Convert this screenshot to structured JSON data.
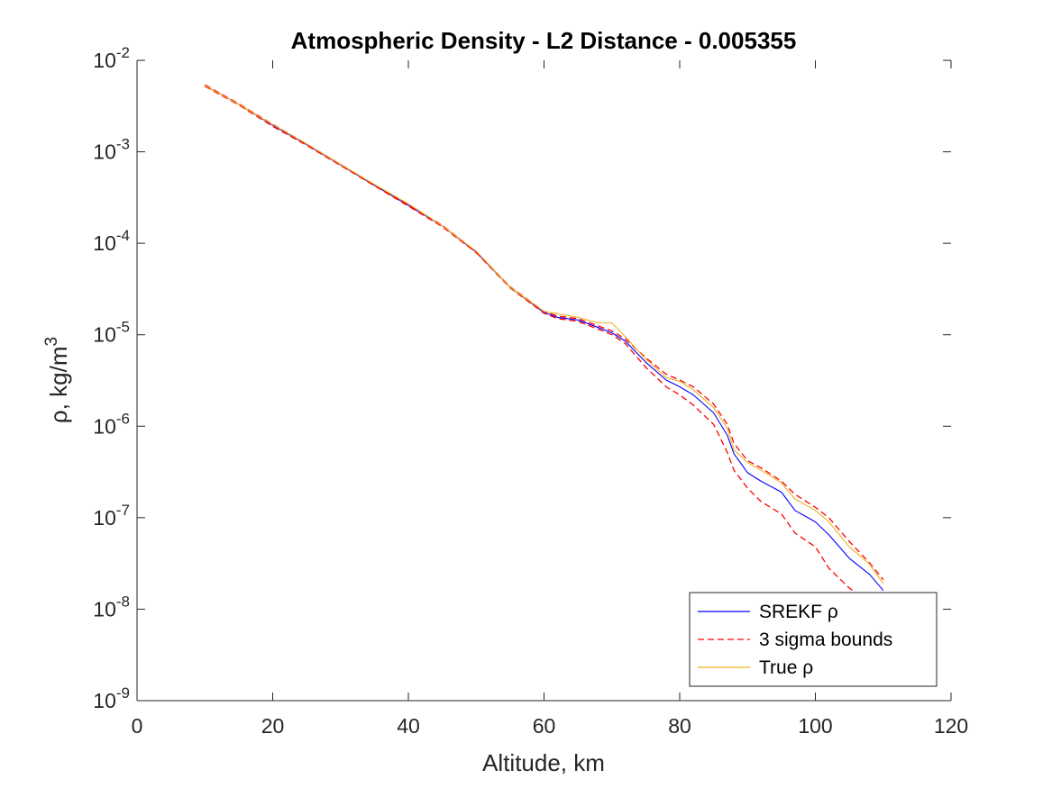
{
  "chart_data": {
    "type": "line",
    "title": "Atmospheric Density - L2 Distance - 0.005355",
    "xlabel": "Altitude, km",
    "ylabel": "ρ, kg/m",
    "ylabel_sup": "3",
    "xlim": [
      0,
      120
    ],
    "ylim": [
      1e-09,
      0.01
    ],
    "yscale": "log",
    "grid": false,
    "legend_position": "bottom-right",
    "x_ticks": [
      0,
      20,
      40,
      60,
      80,
      100,
      120
    ],
    "x_tick_labels": [
      "0",
      "20",
      "40",
      "60",
      "80",
      "100",
      "120"
    ],
    "y_ticks": [
      1e-09,
      1e-08,
      1e-07,
      1e-06,
      1e-05,
      0.0001,
      0.001,
      0.01
    ],
    "y_tick_labels": [
      {
        "base": "10",
        "exp": "-9"
      },
      {
        "base": "10",
        "exp": "-8"
      },
      {
        "base": "10",
        "exp": "-7"
      },
      {
        "base": "10",
        "exp": "-6"
      },
      {
        "base": "10",
        "exp": "-5"
      },
      {
        "base": "10",
        "exp": "-4"
      },
      {
        "base": "10",
        "exp": "-3"
      },
      {
        "base": "10",
        "exp": "-2"
      }
    ],
    "series": [
      {
        "name": "SREKF ρ",
        "color": "#0000ff",
        "style": "solid",
        "x": [
          10,
          15,
          20,
          25,
          30,
          35,
          40,
          45,
          50,
          55,
          60,
          62,
          65,
          68,
          70,
          72,
          75,
          78,
          80,
          82,
          85,
          87,
          88,
          90,
          92,
          95,
          97,
          100,
          102,
          105,
          108,
          110
        ],
        "y": [
          0.0053,
          0.0033,
          0.00195,
          0.0012,
          0.00072,
          0.00043,
          0.00026,
          0.000155,
          8e-05,
          3.3e-05,
          1.75e-05,
          1.55e-05,
          1.45e-05,
          1.2e-05,
          1.05e-05,
          8.5e-06,
          5e-06,
          3.2e-06,
          2.7e-06,
          2.2e-06,
          1.4e-06,
          8e-07,
          5e-07,
          3.1e-07,
          2.5e-07,
          1.9e-07,
          1.2e-07,
          9e-08,
          6.5e-08,
          3.6e-08,
          2.4e-08,
          1.6e-08
        ]
      },
      {
        "name": "3 sigma bounds",
        "color": "#ff0000",
        "style": "dashed",
        "x": [
          10,
          15,
          20,
          25,
          30,
          35,
          40,
          45,
          50,
          55,
          60,
          62,
          65,
          68,
          70,
          72,
          75,
          78,
          80,
          82,
          85,
          87,
          88,
          90,
          92,
          95,
          97,
          100,
          102,
          105,
          108,
          110
        ],
        "y": [
          0.0054,
          0.00335,
          0.002,
          0.00122,
          0.00073,
          0.000435,
          0.000265,
          0.000157,
          8.1e-05,
          3.35e-05,
          1.8e-05,
          1.6e-05,
          1.5e-05,
          1.25e-05,
          1.1e-05,
          9e-06,
          5.6e-06,
          3.7e-06,
          3.2e-06,
          2.7e-06,
          1.75e-06,
          1.05e-06,
          6.5e-07,
          4.2e-07,
          3.5e-07,
          2.5e-07,
          1.8e-07,
          1.3e-07,
          1e-07,
          5.5e-08,
          3.2e-08,
          2.1e-08
        ]
      },
      {
        "name": "",
        "color": "#ff0000",
        "style": "dashed",
        "x": [
          10,
          15,
          20,
          25,
          30,
          35,
          40,
          45,
          50,
          55,
          60,
          62,
          65,
          68,
          70,
          72,
          75,
          78,
          80,
          82,
          85,
          87,
          88,
          90,
          92,
          95,
          97,
          100,
          102,
          105,
          108,
          110
        ],
        "y": [
          0.0052,
          0.00325,
          0.0019,
          0.00118,
          0.00071,
          0.000425,
          0.000255,
          0.000152,
          7.9e-05,
          3.25e-05,
          1.72e-05,
          1.5e-05,
          1.4e-05,
          1.15e-05,
          1e-05,
          8e-06,
          4.4e-06,
          2.7e-06,
          2.2e-06,
          1.7e-06,
          1.05e-06,
          5.2e-07,
          3.3e-07,
          2.1e-07,
          1.5e-07,
          1.1e-07,
          6.8e-08,
          4.8e-08,
          2.8e-08,
          1.7e-08,
          1.2e-08,
          1e-08
        ]
      },
      {
        "name": "True ρ",
        "color": "#edb120",
        "style": "solid",
        "x": [
          10,
          15,
          20,
          25,
          30,
          35,
          40,
          45,
          50,
          55,
          60,
          62,
          65,
          68,
          70,
          72,
          75,
          78,
          80,
          82,
          85,
          87,
          88,
          90,
          92,
          95,
          97,
          100,
          102,
          105,
          108,
          110
        ],
        "y": [
          0.0053,
          0.0033,
          0.00198,
          0.00122,
          0.00073,
          0.00044,
          0.00027,
          0.000155,
          8.2e-05,
          3.3e-05,
          1.8e-05,
          1.7e-05,
          1.55e-05,
          1.35e-05,
          1.35e-05,
          9.5e-06,
          5.4e-06,
          3.4e-06,
          3.1e-06,
          2.5e-06,
          1.6e-06,
          9.5e-07,
          5.5e-07,
          4e-07,
          3.3e-07,
          2.4e-07,
          1.6e-07,
          1.2e-07,
          9e-08,
          4.8e-08,
          3.1e-08,
          1.9e-08
        ]
      }
    ]
  }
}
